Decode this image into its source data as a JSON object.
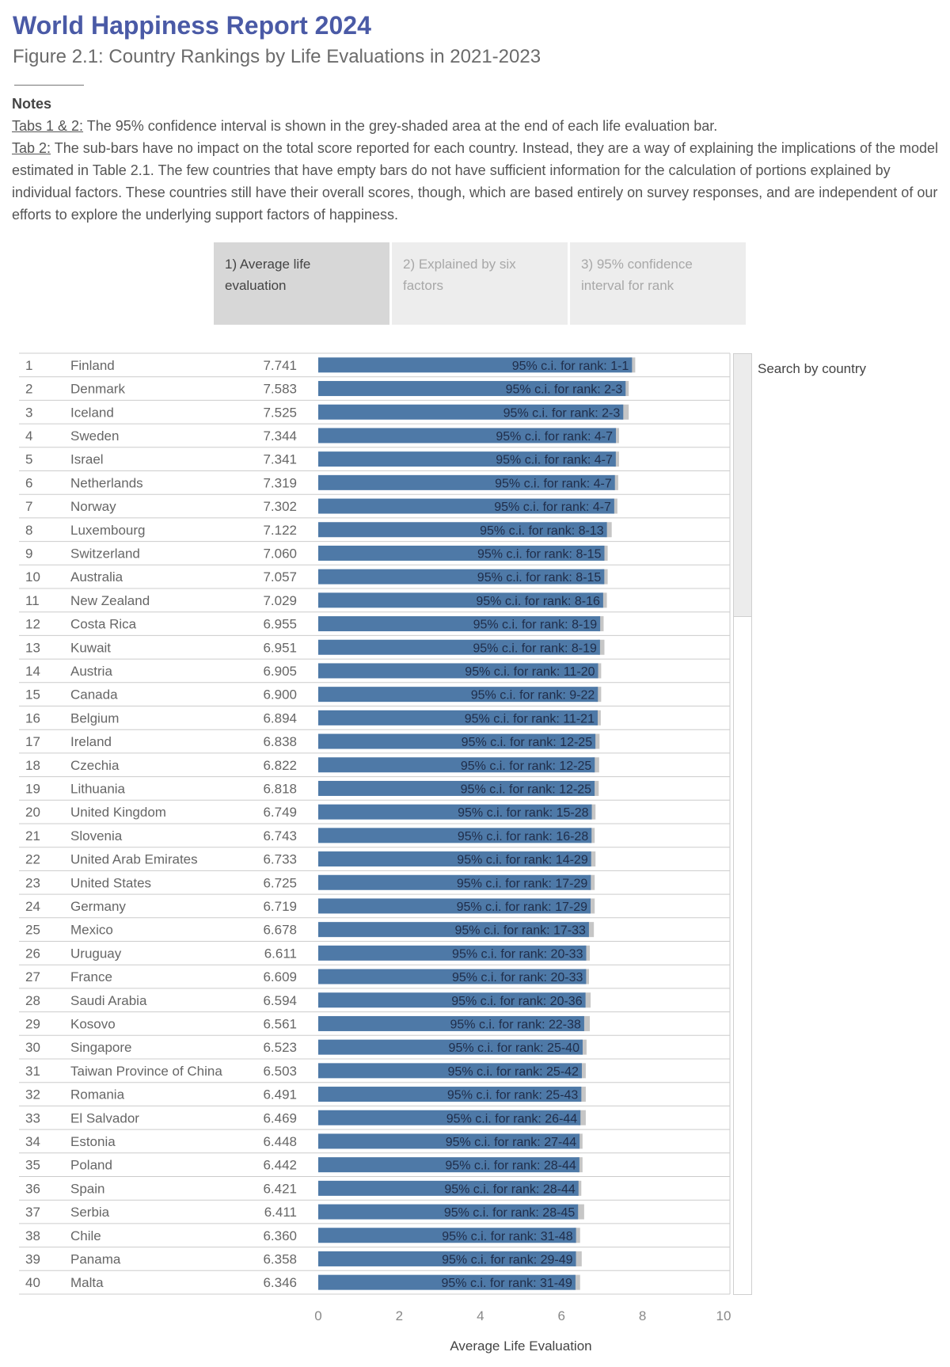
{
  "header": {
    "title": "World Happiness Report 2024",
    "subtitle": "Figure 2.1: Country Rankings by Life Evaluations in 2021-2023"
  },
  "notes": {
    "heading": "Notes",
    "line1_label": "Tabs 1 & 2:",
    "line1_text": " The 95% confidence interval is shown in the grey-shaded area at the end of each life evaluation bar.",
    "line2_label": "Tab 2:",
    "line2_text": " The sub-bars have no impact on the total score reported for each country. Instead, they are a way of explaining the implications of the model estimated in Table 2.1. The few countries that have empty bars do not have sufficient information for the calculation of portions explained by individual factors. These countries still have their overall scores, though, which are based entirely on survey responses, and are independent of our efforts to explore the underlying support factors of happiness."
  },
  "tabs": [
    {
      "label_line1": "1) Average life",
      "label_line2": "evaluation",
      "active": true
    },
    {
      "label_line1": "2) Explained by six",
      "label_line2": "factors",
      "active": false
    },
    {
      "label_line1": "3) 95% confidence",
      "label_line2": "interval for rank",
      "active": false
    }
  ],
  "search": {
    "label": "Search by country"
  },
  "colors": {
    "bar": "#4e79a7",
    "ci": "#c6c6c6",
    "row_line": "#cccccc",
    "text": "#666666"
  },
  "chart_data": {
    "type": "bar",
    "orientation": "horizontal",
    "xlabel": "Average Life Evaluation",
    "xlim": [
      0,
      10
    ],
    "xticks": [
      0,
      2,
      4,
      6,
      8,
      10
    ],
    "label_prefix": "95% c.i. for rank: ",
    "rows": [
      {
        "rank": "1",
        "country": "Finland",
        "value": 7.741,
        "ci_upper": 7.82,
        "rank_ci": "1-1"
      },
      {
        "rank": "2",
        "country": "Denmark",
        "value": 7.583,
        "ci_upper": 7.66,
        "rank_ci": "2-3"
      },
      {
        "rank": "3",
        "country": "Iceland",
        "value": 7.525,
        "ci_upper": 7.66,
        "rank_ci": "2-3"
      },
      {
        "rank": "4",
        "country": "Sweden",
        "value": 7.344,
        "ci_upper": 7.42,
        "rank_ci": "4-7"
      },
      {
        "rank": "5",
        "country": "Israel",
        "value": 7.341,
        "ci_upper": 7.42,
        "rank_ci": "4-7"
      },
      {
        "rank": "6",
        "country": "Netherlands",
        "value": 7.319,
        "ci_upper": 7.4,
        "rank_ci": "4-7"
      },
      {
        "rank": "7",
        "country": "Norway",
        "value": 7.302,
        "ci_upper": 7.38,
        "rank_ci": "4-7"
      },
      {
        "rank": "8",
        "country": "Luxembourg",
        "value": 7.122,
        "ci_upper": 7.24,
        "rank_ci": "8-13"
      },
      {
        "rank": "9",
        "country": "Switzerland",
        "value": 7.06,
        "ci_upper": 7.14,
        "rank_ci": "8-15"
      },
      {
        "rank": "10",
        "country": "Australia",
        "value": 7.057,
        "ci_upper": 7.14,
        "rank_ci": "8-15"
      },
      {
        "rank": "11",
        "country": "New Zealand",
        "value": 7.029,
        "ci_upper": 7.12,
        "rank_ci": "8-16"
      },
      {
        "rank": "12",
        "country": "Costa Rica",
        "value": 6.955,
        "ci_upper": 7.04,
        "rank_ci": "8-19"
      },
      {
        "rank": "13",
        "country": "Kuwait",
        "value": 6.951,
        "ci_upper": 7.06,
        "rank_ci": "8-19"
      },
      {
        "rank": "14",
        "country": "Austria",
        "value": 6.905,
        "ci_upper": 6.98,
        "rank_ci": "11-20"
      },
      {
        "rank": "15",
        "country": "Canada",
        "value": 6.9,
        "ci_upper": 6.98,
        "rank_ci": "9-22"
      },
      {
        "rank": "16",
        "country": "Belgium",
        "value": 6.894,
        "ci_upper": 6.97,
        "rank_ci": "11-21"
      },
      {
        "rank": "17",
        "country": "Ireland",
        "value": 6.838,
        "ci_upper": 6.94,
        "rank_ci": "12-25"
      },
      {
        "rank": "18",
        "country": "Czechia",
        "value": 6.822,
        "ci_upper": 6.93,
        "rank_ci": "12-25"
      },
      {
        "rank": "19",
        "country": "Lithuania",
        "value": 6.818,
        "ci_upper": 6.92,
        "rank_ci": "12-25"
      },
      {
        "rank": "20",
        "country": "United Kingdom",
        "value": 6.749,
        "ci_upper": 6.84,
        "rank_ci": "15-28"
      },
      {
        "rank": "21",
        "country": "Slovenia",
        "value": 6.743,
        "ci_upper": 6.82,
        "rank_ci": "16-28"
      },
      {
        "rank": "22",
        "country": "United Arab Emirates",
        "value": 6.733,
        "ci_upper": 6.84,
        "rank_ci": "14-29"
      },
      {
        "rank": "23",
        "country": "United States",
        "value": 6.725,
        "ci_upper": 6.82,
        "rank_ci": "17-29"
      },
      {
        "rank": "24",
        "country": "Germany",
        "value": 6.719,
        "ci_upper": 6.82,
        "rank_ci": "17-29"
      },
      {
        "rank": "25",
        "country": "Mexico",
        "value": 6.678,
        "ci_upper": 6.8,
        "rank_ci": "17-33"
      },
      {
        "rank": "26",
        "country": "Uruguay",
        "value": 6.611,
        "ci_upper": 6.7,
        "rank_ci": "20-33"
      },
      {
        "rank": "27",
        "country": "France",
        "value": 6.609,
        "ci_upper": 6.68,
        "rank_ci": "20-33"
      },
      {
        "rank": "28",
        "country": "Saudi Arabia",
        "value": 6.594,
        "ci_upper": 6.72,
        "rank_ci": "20-36"
      },
      {
        "rank": "29",
        "country": "Kosovo",
        "value": 6.561,
        "ci_upper": 6.7,
        "rank_ci": "22-38"
      },
      {
        "rank": "30",
        "country": "Singapore",
        "value": 6.523,
        "ci_upper": 6.62,
        "rank_ci": "25-40"
      },
      {
        "rank": "31",
        "country": "Taiwan Province of China",
        "value": 6.503,
        "ci_upper": 6.6,
        "rank_ci": "25-42"
      },
      {
        "rank": "32",
        "country": "Romania",
        "value": 6.491,
        "ci_upper": 6.6,
        "rank_ci": "25-43"
      },
      {
        "rank": "33",
        "country": "El Salvador",
        "value": 6.469,
        "ci_upper": 6.6,
        "rank_ci": "26-44"
      },
      {
        "rank": "34",
        "country": "Estonia",
        "value": 6.448,
        "ci_upper": 6.52,
        "rank_ci": "27-44"
      },
      {
        "rank": "35",
        "country": "Poland",
        "value": 6.442,
        "ci_upper": 6.52,
        "rank_ci": "28-44"
      },
      {
        "rank": "36",
        "country": "Spain",
        "value": 6.421,
        "ci_upper": 6.49,
        "rank_ci": "28-44"
      },
      {
        "rank": "37",
        "country": "Serbia",
        "value": 6.411,
        "ci_upper": 6.56,
        "rank_ci": "28-45"
      },
      {
        "rank": "38",
        "country": "Chile",
        "value": 6.36,
        "ci_upper": 6.46,
        "rank_ci": "31-48"
      },
      {
        "rank": "39",
        "country": "Panama",
        "value": 6.358,
        "ci_upper": 6.5,
        "rank_ci": "29-49"
      },
      {
        "rank": "40",
        "country": "Malta",
        "value": 6.346,
        "ci_upper": 6.46,
        "rank_ci": "31-49"
      }
    ]
  }
}
